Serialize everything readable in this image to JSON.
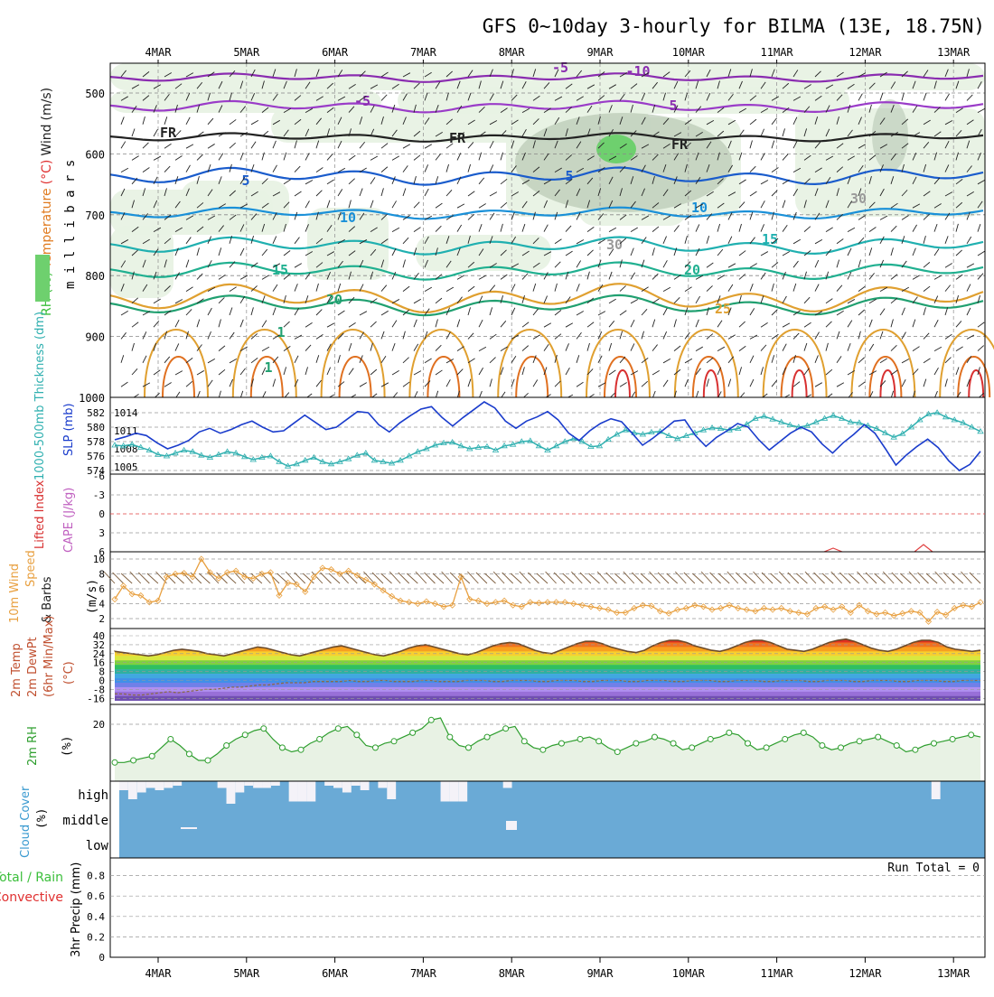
{
  "chart_data": {
    "type": "meteogram",
    "title": "GFS 0~10day 3-hourly for BILMA (13E, 18.75N)",
    "date_labels": [
      "4MAR",
      "5MAR",
      "6MAR",
      "7MAR",
      "8MAR",
      "9MAR",
      "10MAR",
      "11MAR",
      "12MAR",
      "13MAR"
    ],
    "panels": {
      "upper_air": {
        "ylabel_parts": [
          {
            "text": "RH (%)",
            "color": "#3bbf3b"
          },
          {
            "text": "Temperature",
            "color": "#e07b20"
          },
          {
            "text": "(°C)",
            "color": "#e03030"
          },
          {
            "text": "Wind",
            "color": "#202020"
          },
          {
            "text": "(m/s)",
            "color": "#202020"
          }
        ],
        "yunit": "m i l l i b a r s",
        "yticks": [
          "500",
          "600",
          "700",
          "800",
          "900",
          "1000"
        ],
        "ylim": [
          1000,
          450
        ],
        "contour_labels": [
          "-10",
          "-5",
          "5",
          "-5",
          "FR",
          "FR",
          "FR",
          "5",
          "5",
          "10",
          "10",
          "15",
          "15",
          "20",
          "20",
          "25",
          "1",
          "1",
          "30",
          "30"
        ]
      },
      "thickness_slp": {
        "ylabel_left": "1000-500mb Thickness (dm)",
        "ylabel_right": "SLP (mb)",
        "yticks_left": [
          "574",
          "576",
          "578",
          "580",
          "582"
        ],
        "yticks_right": [
          "1005",
          "1008",
          "1011",
          "1014"
        ]
      },
      "stability": {
        "ylabel_left": "Lifted Index",
        "ylabel_right": "CAPE (J/kg)",
        "yticks": [
          "-6",
          "-3",
          "0",
          "3",
          "6"
        ]
      },
      "wind10m": {
        "ylabel_parts": [
          "10m Wind",
          "Speed",
          "& Barbs",
          "(m/s)"
        ],
        "yticks": [
          "2",
          "4",
          "6",
          "8",
          "10"
        ]
      },
      "temp2m": {
        "ylabel_parts": [
          "2m Temp",
          "2m DewPt",
          "(6hr Min/Max)",
          "(°C)"
        ],
        "yticks": [
          "40",
          "32",
          "24",
          "16",
          "8",
          "0",
          "-8",
          "-16"
        ]
      },
      "rh2m": {
        "ylabel": "2m RH",
        "yunit": "(%)",
        "yticks": [
          "20"
        ]
      },
      "cloud": {
        "ylabel": "Cloud Cover",
        "yunit": "(%)",
        "levels": [
          "high",
          "middle",
          "low"
        ]
      },
      "precip": {
        "ylabel_parts": [
          "Total / Rain",
          "Convective",
          "3hr Precip (mm)"
        ],
        "yticks": [
          "0",
          "0.2",
          "0.4",
          "0.6",
          "0.8"
        ],
        "run_total_label": "Run Total = 0"
      }
    },
    "series": {
      "slp_mb": [
        1009.5,
        1010.0,
        1010.6,
        1010.2,
        1009.0,
        1008.0,
        1008.6,
        1009.4,
        1010.8,
        1011.4,
        1010.6,
        1011.2,
        1012.0,
        1012.6,
        1011.6,
        1010.8,
        1011.0,
        1012.3,
        1013.6,
        1012.4,
        1011.2,
        1011.6,
        1012.9,
        1014.2,
        1014.0,
        1012.0,
        1010.8,
        1012.3,
        1013.5,
        1014.6,
        1015.0,
        1013.2,
        1011.8,
        1013.2,
        1014.5,
        1015.8,
        1014.8,
        1012.6,
        1011.4,
        1012.6,
        1013.3,
        1014.2,
        1012.8,
        1010.6,
        1009.4,
        1011.0,
        1012.2,
        1013.0,
        1012.5,
        1010.6,
        1008.6,
        1009.8,
        1011.2,
        1012.6,
        1012.8,
        1010.2,
        1008.4,
        1009.9,
        1011.0,
        1012.2,
        1011.6,
        1009.5,
        1007.8,
        1009.2,
        1010.6,
        1011.6,
        1010.8,
        1008.8,
        1007.3,
        1009.0,
        1010.4,
        1012.0,
        1010.6,
        1008.0,
        1005.3,
        1007.0,
        1008.4,
        1009.6,
        1008.2,
        1006.0,
        1004.4,
        1005.4,
        1007.6
      ],
      "thickness_dm": [
        577.5,
        577.4,
        577.6,
        577.2,
        576.8,
        576.2,
        576.0,
        576.4,
        576.8,
        576.6,
        576.1,
        575.8,
        576.2,
        576.6,
        576.4,
        575.9,
        575.5,
        575.8,
        576.0,
        575.2,
        574.6,
        574.9,
        575.4,
        575.8,
        575.2,
        574.9,
        575.2,
        575.6,
        576.1,
        576.4,
        575.4,
        575.2,
        575.0,
        575.4,
        576.0,
        576.6,
        577.0,
        577.5,
        577.8,
        577.9,
        577.4,
        577.0,
        577.2,
        577.3,
        576.8,
        577.4,
        577.6,
        578.0,
        578.1,
        577.4,
        576.8,
        577.4,
        578.0,
        578.4,
        578.0,
        577.3,
        577.4,
        578.3,
        579.0,
        579.6,
        579.2,
        579.0,
        579.3,
        579.4,
        578.8,
        578.4,
        578.8,
        579.2,
        579.6,
        579.9,
        579.8,
        579.6,
        579.8,
        580.4,
        581.2,
        581.5,
        581.1,
        580.7,
        580.3,
        580.0,
        580.2,
        580.7,
        581.2,
        581.6,
        581.2,
        580.7,
        580.6,
        580.2,
        579.8,
        579.2,
        578.6,
        579.1,
        580.0,
        581.0,
        581.8,
        582.0,
        581.4,
        581.0,
        580.6,
        580.0,
        579.4
      ],
      "wind10m_speed": [
        4.6,
        6.4,
        5.3,
        5.1,
        4.2,
        4.4,
        7.6,
        8.0,
        8.1,
        7.6,
        10.0,
        8.2,
        7.4,
        8.2,
        8.4,
        7.6,
        7.4,
        8.0,
        8.2,
        5.1,
        6.8,
        6.6,
        5.6,
        7.6,
        8.8,
        8.6,
        8.0,
        8.4,
        7.8,
        7.2,
        6.6,
        5.8,
        5.0,
        4.4,
        4.2,
        4.0,
        4.3,
        4.0,
        3.6,
        3.8,
        7.6,
        4.6,
        4.4,
        4.0,
        4.2,
        4.4,
        3.8,
        3.6,
        4.2,
        4.1,
        4.2,
        4.2,
        4.2,
        4.0,
        3.8,
        3.6,
        3.4,
        3.2,
        2.8,
        2.8,
        3.4,
        3.8,
        3.7,
        3.0,
        2.7,
        3.2,
        3.4,
        3.8,
        3.6,
        3.2,
        3.4,
        3.8,
        3.4,
        3.2,
        3.0,
        3.4,
        3.2,
        3.4,
        3.0,
        2.8,
        2.6,
        3.4,
        3.6,
        3.2,
        3.6,
        2.8,
        3.8,
        3.0,
        2.6,
        2.8,
        2.4,
        2.7,
        3.0,
        2.8,
        1.6,
        2.9,
        2.5,
        3.4,
        3.8,
        3.6,
        4.2
      ],
      "temp2m": [
        26,
        25,
        24,
        23,
        22,
        23,
        25,
        27,
        28,
        27,
        26,
        24,
        23,
        22,
        24,
        26,
        28,
        30,
        29,
        27,
        25,
        23,
        22,
        24,
        26,
        28,
        30,
        31,
        29,
        27,
        25,
        23,
        22,
        24,
        26,
        29,
        31,
        32,
        30,
        28,
        26,
        24,
        23,
        25,
        28,
        31,
        33,
        34,
        33,
        30,
        27,
        25,
        24,
        27,
        30,
        33,
        35,
        35,
        33,
        30,
        28,
        26,
        25,
        27,
        31,
        34,
        36,
        36,
        34,
        31,
        29,
        27,
        26,
        28,
        31,
        34,
        36,
        36,
        34,
        31,
        28,
        27,
        26,
        28,
        31,
        34,
        36,
        37,
        35,
        32,
        29,
        27,
        26,
        28,
        31,
        34,
        36,
        36,
        34,
        30,
        28,
        27,
        26,
        27
      ],
      "dewpt2m": [
        -12,
        -12,
        -13,
        -13,
        -12,
        -11,
        -10,
        -11,
        -10,
        -9,
        -8,
        -8,
        -7,
        -6,
        -6,
        -5,
        -4,
        -4,
        -3,
        -2,
        -2,
        -2,
        -1,
        -1,
        -1,
        -1,
        0,
        -1,
        -1,
        0,
        0,
        -1,
        -1,
        -1,
        0,
        0,
        -1,
        -1,
        -1,
        0,
        0,
        0,
        -1,
        -1,
        0,
        0,
        0,
        -1,
        -1,
        0,
        0,
        0,
        -1,
        -1,
        0,
        0,
        0,
        -1,
        -1,
        0,
        0,
        0,
        -1,
        -1,
        0,
        0,
        0,
        -1,
        -1,
        0,
        0,
        0,
        -1,
        -1,
        0,
        0,
        0,
        -1,
        -1,
        0,
        0,
        0,
        -1,
        -1,
        0,
        0,
        0,
        -1,
        -1,
        0,
        0,
        0,
        -1,
        -1,
        0,
        0,
        0
      ],
      "rh2m": [
        2,
        2,
        3,
        4,
        5,
        9,
        13,
        10,
        6,
        3,
        3,
        6,
        10,
        13,
        15,
        17,
        18,
        13,
        9,
        7,
        8,
        11,
        13,
        16,
        18,
        19,
        15,
        10,
        9,
        11,
        12,
        14,
        16,
        18,
        22,
        23,
        14,
        10,
        9,
        12,
        14,
        16,
        18,
        19,
        12,
        9,
        8,
        10,
        11,
        12,
        13,
        14,
        12,
        9,
        7,
        9,
        11,
        12,
        14,
        13,
        11,
        8,
        9,
        11,
        13,
        14,
        16,
        15,
        11,
        8,
        9,
        11,
        13,
        15,
        16,
        14,
        10,
        8,
        9,
        11,
        12,
        13,
        14,
        12,
        10,
        7,
        8,
        10,
        11,
        12,
        13,
        14,
        15,
        14
      ]
    },
    "cloud_bars": {
      "high": [
        0.4,
        0.8,
        0.5,
        0.3,
        0.4,
        0.3,
        0.2,
        0,
        0,
        0,
        0,
        0.3,
        1,
        0.5,
        0.2,
        0.3,
        0.3,
        0.2,
        0,
        0.9,
        0.9,
        0.9,
        0,
        0.2,
        0.3,
        0.5,
        0.2,
        0.4,
        0,
        0.3,
        0.8,
        0,
        0,
        0,
        0,
        0,
        0.9,
        0.9,
        0.9,
        0,
        0,
        0,
        0,
        0.3,
        0,
        0,
        0,
        0,
        0,
        0,
        0,
        0,
        0,
        0,
        0,
        0,
        0,
        0,
        0,
        0,
        0,
        0,
        0,
        0,
        0,
        0,
        0,
        0,
        0,
        0,
        0,
        0,
        0,
        0,
        0,
        0,
        0,
        0,
        0,
        0,
        0,
        0,
        0,
        0,
        0,
        0,
        0,
        0,
        0,
        0,
        0,
        0.8,
        0,
        0,
        0,
        0,
        0
      ],
      "middle_spots": [
        [
          8.1,
          0.5
        ]
      ],
      "low_spots": []
    },
    "precip_total_mm": 0,
    "colors": {
      "rh_shade": "#e8f2e4",
      "rh_shade_dark": "#b8c8b4",
      "rh_high": "#6ed06e",
      "slp": "#1a3ccc",
      "thickness": "#30b0b0",
      "wind_speed": "#e8a040",
      "temp_line": "#6b4a2a",
      "dewpt_line": "#8a6a4a",
      "rh2m": "#2e9e2e",
      "cloud_blue": "#6aaad6",
      "cloud_white": "#f4f2f8",
      "lifted_zero": "#e04040",
      "cape": "#c060c0",
      "precip_total": "#3bbf3b",
      "precip_conv": "#e03030"
    }
  }
}
